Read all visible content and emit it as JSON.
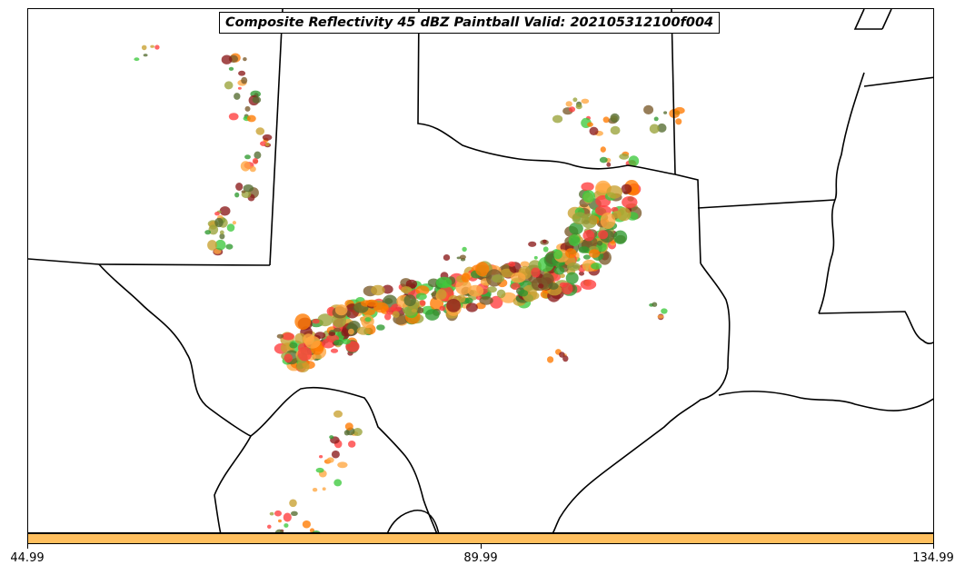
{
  "title": "Composite Reflectivity 45 dBZ Paintball Valid: 202105312100f004",
  "colorbar": {
    "color": "#ffbf5e",
    "ticks": [
      "44.99",
      "89.99",
      "134.99"
    ]
  },
  "colors": {
    "border": "#000000",
    "paintball": [
      "#3ec93e",
      "#2f9a2f",
      "#ff3c3c",
      "#8b1a1a",
      "#ffa640",
      "#ff7a00",
      "#9aa33a",
      "#7a5a2a",
      "#c8a030",
      "#556b2f"
    ]
  }
}
